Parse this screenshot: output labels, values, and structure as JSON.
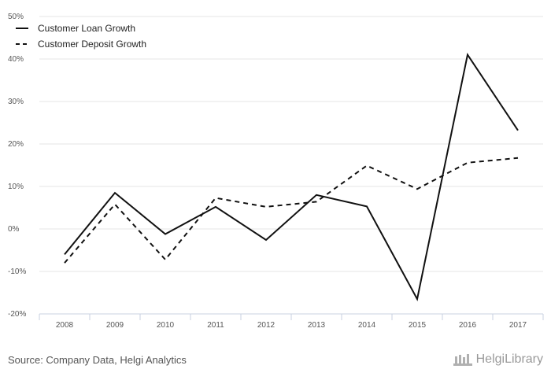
{
  "chart_data": {
    "type": "line",
    "categories": [
      "2008",
      "2009",
      "2010",
      "2011",
      "2012",
      "2013",
      "2014",
      "2015",
      "2016",
      "2017"
    ],
    "series": [
      {
        "name": "Customer Loan Growth",
        "style": "solid",
        "values": [
          -6.0,
          8.5,
          -1.2,
          5.2,
          -2.6,
          8.0,
          5.3,
          -16.5,
          41.0,
          23.2
        ]
      },
      {
        "name": "Customer Deposit Growth",
        "style": "dashed",
        "values": [
          -8.0,
          5.8,
          -7.2,
          7.3,
          5.2,
          6.4,
          14.9,
          9.4,
          15.6,
          16.7
        ]
      }
    ],
    "ylim": [
      -20,
      50
    ],
    "yticks": [
      -20,
      -10,
      0,
      10,
      20,
      30,
      40,
      50
    ],
    "ytick_labels": [
      "-20%",
      "-10%",
      "0%",
      "10%",
      "20%",
      "30%",
      "40%",
      "50%"
    ],
    "grid": true,
    "legend_position": "top-left",
    "line_color": "#111111"
  },
  "footer": {
    "source": "Source: Company Data, Helgi Analytics",
    "brand": "HelgiLibrary"
  }
}
